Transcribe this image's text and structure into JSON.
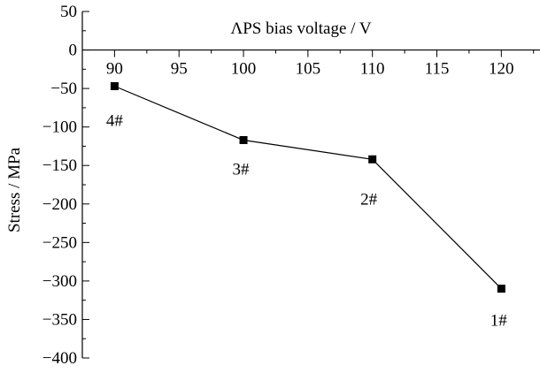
{
  "chart_data": {
    "type": "line",
    "xlabel": "ΛPS bias voltage / V",
    "ylabel": "Stress / MPa",
    "xlim": [
      87.5,
      123
    ],
    "ylim": [
      -400,
      50
    ],
    "x_ticks": [
      90,
      95,
      100,
      105,
      110,
      115,
      120
    ],
    "y_ticks": [
      50,
      0,
      -50,
      -100,
      -150,
      -200,
      -250,
      -300,
      -350,
      -400
    ],
    "x_tick_labels": [
      "90",
      "95",
      "100",
      "105",
      "110",
      "115",
      "120"
    ],
    "y_tick_labels": [
      "50",
      "0",
      "−50",
      "−100",
      "−150",
      "−200",
      "−250",
      "−300",
      "−350",
      "−400"
    ],
    "x_axis_position": "top, at y = 0",
    "marker": "square",
    "grid": false,
    "series": [
      {
        "x": [
          90,
          100,
          110,
          120
        ],
        "y": [
          -47,
          -117,
          -142,
          -310
        ],
        "point_labels": [
          "4#",
          "3#",
          "2#",
          "1#"
        ]
      }
    ]
  }
}
